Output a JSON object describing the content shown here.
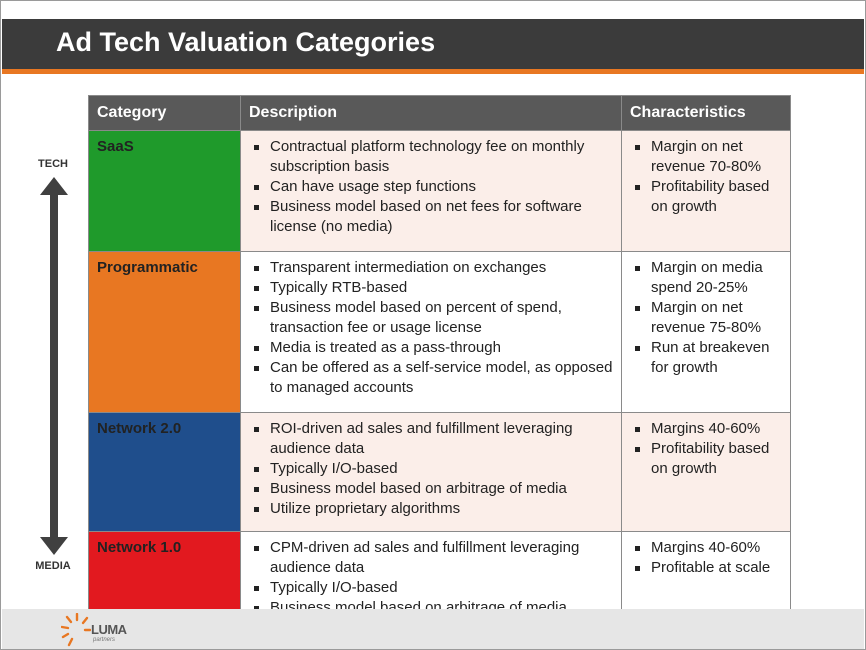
{
  "slide": {
    "title": "Ad Tech Valuation Categories",
    "axis_top": "TECH",
    "axis_bottom": "MEDIA",
    "logo_name": "LUMA",
    "logo_sub": "partners"
  },
  "table": {
    "headers": [
      "Category",
      "Description",
      "Characteristics"
    ],
    "rows": [
      {
        "category": "SaaS",
        "color": "#1f9a2b",
        "description": [
          "Contractual platform technology fee on monthly subscription basis",
          "Can have usage step functions",
          "Business model based on net fees for software license (no media)"
        ],
        "characteristics": [
          "Margin on net revenue 70-80%",
          "Profitability based on growth"
        ]
      },
      {
        "category": "Programmatic",
        "color": "#e87722",
        "description": [
          "Transparent intermediation on exchanges",
          "Typically RTB-based",
          "Business model based on percent of spend, transaction fee or usage license",
          "Media is treated as a pass-through",
          "Can be offered as a self-service model, as opposed to managed accounts"
        ],
        "characteristics": [
          "Margin on media spend 20-25%",
          "Margin on net revenue 75-80%",
          "Run at breakeven for growth"
        ]
      },
      {
        "category": "Network 2.0",
        "color": "#1f4e8c",
        "description": [
          "ROI-driven ad sales and fulfillment leveraging audience data",
          "Typically I/O-based",
          "Business model based on arbitrage of media",
          "Utilize proprietary algorithms"
        ],
        "characteristics": [
          "Margins 40-60%",
          "Profitability based on growth"
        ]
      },
      {
        "category": "Network 1.0",
        "color": "#e2191f",
        "description": [
          "CPM-driven ad sales and fulfillment leveraging audience data",
          "Typically I/O-based",
          "Business model based on arbitrage of media"
        ],
        "characteristics": [
          "Margins 40-60%",
          "Profitable at scale"
        ]
      }
    ]
  }
}
